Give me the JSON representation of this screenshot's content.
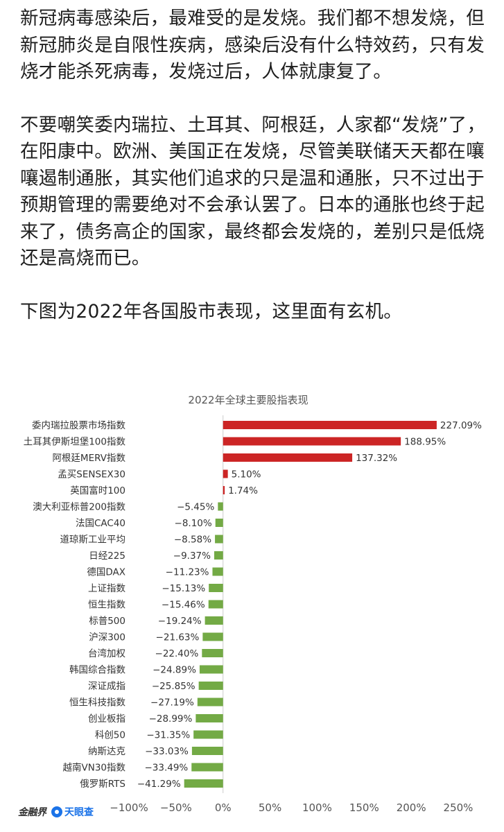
{
  "article": {
    "paragraphs": [
      "新冠病毒感染后，最难受的是发烧。我们都不想发烧，但新冠肺炎是自限性疾病，感染后没有什么特效药，只有发烧才能杀死病毒，发烧过后，人体就康复了。",
      "不要嘲笑委内瑞拉、土耳其、阿根廷，人家都“发烧”了，在阳康中。欧洲、美国正在发烧，尽管美联储天天都在嚷嚷遏制通胀，其实他们追求的只是温和通胀，只不过出于预期管理的需要绝对不会承认罢了。日本的通胀也终于起来了，债务高企的国家，最终都会发烧的，差别只是低烧还是高烧而已。",
      "下图为2022年各国股市表现，这里面有玄机。"
    ]
  },
  "chart_data": {
    "type": "bar",
    "orientation": "horizontal",
    "title": "2022年全球主要股指表现",
    "categories": [
      "委内瑞拉股票市场指数",
      "土耳其伊斯坦堡100指数",
      "阿根廷MERV指数",
      "孟买SENSEX30",
      "英国富时100",
      "澳大利亚标普200指数",
      "法国CAC40",
      "道琼斯工业平均",
      "日经225",
      "德国DAX",
      "上证指数",
      "恒生指数",
      "标普500",
      "沪深300",
      "台湾加权",
      "韩国综合指数",
      "深证成指",
      "恒生科技指数",
      "创业板指",
      "科创50",
      "纳斯达克",
      "越南VN30指数",
      "俄罗斯RTS"
    ],
    "values": [
      227.09,
      188.95,
      137.32,
      5.1,
      1.74,
      -5.45,
      -8.1,
      -8.58,
      -9.37,
      -11.23,
      -15.13,
      -15.46,
      -19.24,
      -21.63,
      -22.4,
      -24.89,
      -25.85,
      -27.19,
      -28.99,
      -31.35,
      -33.03,
      -33.49,
      -41.29
    ],
    "value_labels": [
      "227.09%",
      "188.95%",
      "137.32%",
      "5.10%",
      "1.74%",
      "−5.45%",
      "−8.10%",
      "−8.58%",
      "−9.37%",
      "−11.23%",
      "−15.13%",
      "−15.46%",
      "−19.24%",
      "−21.63%",
      "−22.40%",
      "−24.89%",
      "−25.85%",
      "−27.19%",
      "−28.99%",
      "−31.35%",
      "−33.03%",
      "−33.49%",
      "−41.29%"
    ],
    "xlim": [
      -100,
      250
    ],
    "x_ticks": [
      -100,
      -50,
      0,
      50,
      100,
      150,
      200,
      250
    ],
    "x_tick_labels": [
      "−100%",
      "−50%",
      "0%",
      "50%",
      "100%",
      "150%",
      "200%",
      "250%"
    ],
    "grid": false,
    "colors": {
      "positive": "#cc2525",
      "negative": "#73aa45"
    }
  },
  "footer": {
    "logo_left": "金融界",
    "logo_right": "天眼查"
  }
}
